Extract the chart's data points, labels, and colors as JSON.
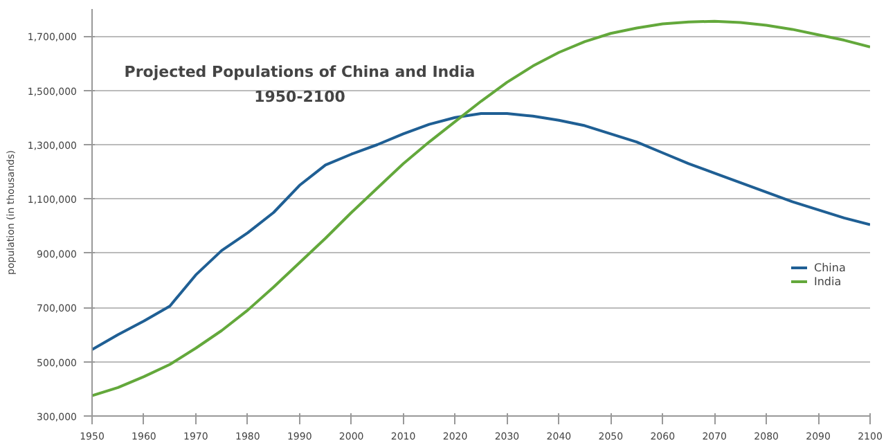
{
  "chart_data": {
    "type": "line",
    "title": "Projected Populations of China and India\n1950-2100",
    "ylabel": "population (in thousands)",
    "x": [
      1950,
      1955,
      1960,
      1965,
      1970,
      1975,
      1980,
      1985,
      1990,
      1995,
      2000,
      2005,
      2010,
      2015,
      2020,
      2025,
      2030,
      2035,
      2040,
      2045,
      2050,
      2055,
      2060,
      2065,
      2070,
      2075,
      2080,
      2085,
      2090,
      2095,
      2100
    ],
    "series": [
      {
        "name": "China",
        "color": "#1f5f94",
        "values": [
          545000,
          600000,
          650000,
          705000,
          820000,
          910000,
          975000,
          1050000,
          1150000,
          1225000,
          1265000,
          1300000,
          1340000,
          1375000,
          1400000,
          1415000,
          1415000,
          1405000,
          1390000,
          1370000,
          1340000,
          1310000,
          1270000,
          1230000,
          1195000,
          1160000,
          1125000,
          1090000,
          1060000,
          1030000,
          1005000
        ]
      },
      {
        "name": "India",
        "color": "#63a83b",
        "values": [
          375000,
          405000,
          445000,
          490000,
          550000,
          615000,
          690000,
          775000,
          865000,
          955000,
          1050000,
          1140000,
          1230000,
          1310000,
          1385000,
          1460000,
          1530000,
          1590000,
          1640000,
          1680000,
          1710000,
          1730000,
          1745000,
          1752000,
          1755000,
          1750000,
          1740000,
          1725000,
          1705000,
          1685000,
          1660000
        ]
      }
    ],
    "xlim": [
      1950,
      2100
    ],
    "xticks": [
      1950,
      1960,
      1970,
      1980,
      1990,
      2000,
      2010,
      2020,
      2030,
      2040,
      2050,
      2060,
      2070,
      2080,
      2090,
      2100
    ],
    "ylim": [
      300000,
      1800000
    ],
    "yticks": [
      {
        "value": 300000,
        "label": "300,000"
      },
      {
        "value": 500000,
        "label": "500,000"
      },
      {
        "value": 700000,
        "label": "700,000"
      },
      {
        "value": 900000,
        "label": "900,000"
      },
      {
        "value": 1100000,
        "label": "1,100,000"
      },
      {
        "value": 1300000,
        "label": "1,300,000"
      },
      {
        "value": 1500000,
        "label": "1,500,000"
      },
      {
        "value": 1700000,
        "label": "1,700,000"
      }
    ],
    "grid": "y",
    "legend": "right",
    "line_style": "solid",
    "marker": "none"
  }
}
